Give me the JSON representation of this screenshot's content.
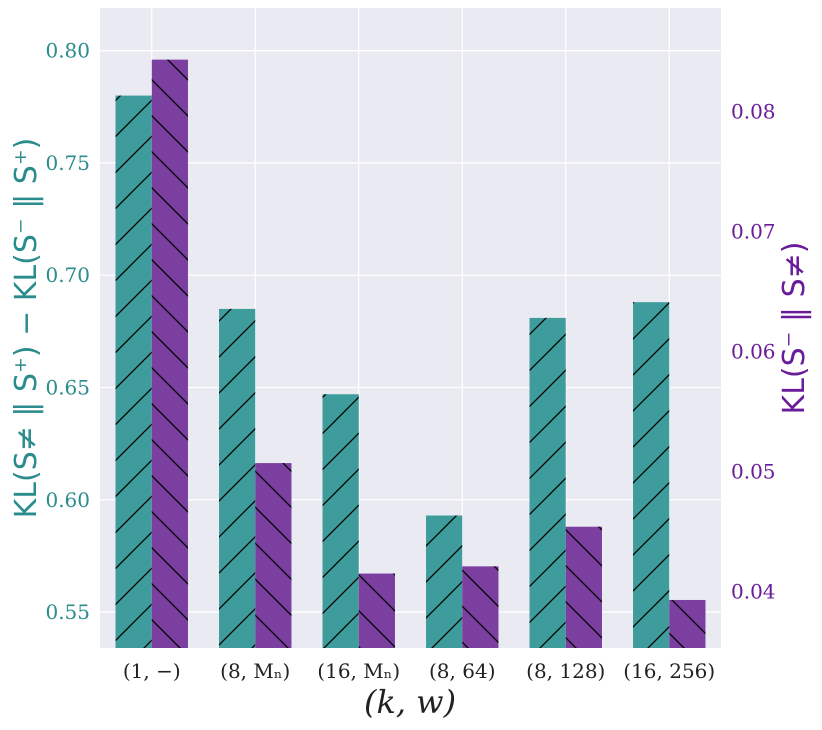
{
  "chart_data": {
    "type": "bar",
    "categories": [
      "(1, −)",
      "(8, Mₙ)",
      "(16, Mₙ)",
      "(8, 64)",
      "(8, 128)",
      "(16, 256)"
    ],
    "series": [
      {
        "axis": "left",
        "color": "#3f9c9c",
        "hatch": "forward-slash",
        "values": [
          0.78,
          0.685,
          0.647,
          0.593,
          0.681,
          0.688
        ]
      },
      {
        "axis": "right",
        "color": "#7b3fa0",
        "hatch": "back-slash",
        "values": [
          0.0843,
          0.0507,
          0.0415,
          0.0421,
          0.0454,
          0.0393
        ]
      }
    ],
    "xlabel": "(k, w)",
    "ylabel_left": "KL(S≠ ‖ S⁺) − KL(S⁻ ‖ S⁺)",
    "ylabel_right": "KL(S⁻ ‖ S≠)",
    "ylim_left": [
      0.534,
      0.819
    ],
    "ylim_right": [
      0.0353,
      0.0886
    ],
    "yticks_left": [
      "0.55",
      "0.60",
      "0.65",
      "0.70",
      "0.75",
      "0.80"
    ],
    "yticks_right": [
      "0.04",
      "0.05",
      "0.06",
      "0.07",
      "0.08"
    ],
    "grid": true,
    "background": "#eaeaf2",
    "left_axis_color": "#2a8c8c",
    "right_axis_color": "#6a1b9a"
  }
}
